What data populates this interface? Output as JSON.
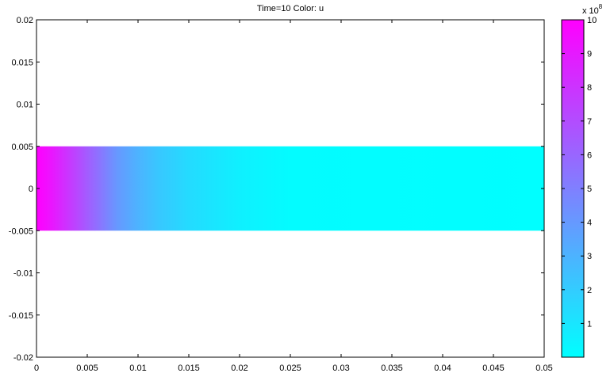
{
  "chart_data": {
    "type": "heatmap",
    "title": "Time=10   Color: u",
    "xlabel": "",
    "ylabel": "",
    "xlim": [
      0,
      0.05
    ],
    "ylim": [
      -0.02,
      0.02
    ],
    "x_ticks": [
      "0",
      "0.005",
      "0.01",
      "0.015",
      "0.02",
      "0.025",
      "0.03",
      "0.035",
      "0.04",
      "0.045",
      "0.05"
    ],
    "y_ticks": [
      "0.02",
      "0.015",
      "0.01",
      "0.005",
      "0",
      "-0.005",
      "-0.01",
      "-0.015",
      "-0.02"
    ],
    "domain": {
      "x": [
        0,
        0.05
      ],
      "y": [
        -0.005,
        0.005
      ]
    },
    "profile": {
      "x": [
        0,
        0.001,
        0.002,
        0.003,
        0.004,
        0.005,
        0.006,
        0.007,
        0.008,
        0.01,
        0.012,
        0.015,
        0.02,
        0.025,
        0.05
      ],
      "u": [
        1000000000.0,
        950000000.0,
        880000000.0,
        800000000.0,
        720000000.0,
        640000000.0,
        560000000.0,
        480000000.0,
        400000000.0,
        300000000.0,
        220000000.0,
        140000000.0,
        60000000.0,
        10000000.0,
        0
      ]
    },
    "colorbar": {
      "range": [
        0,
        10
      ],
      "ticks": [
        "1",
        "2",
        "3",
        "4",
        "5",
        "6",
        "7",
        "8",
        "9",
        "10"
      ],
      "multiplier_base": "x 10",
      "multiplier_exp": "8",
      "color_low": "#00ffff",
      "color_high": "#ff00ff"
    }
  }
}
